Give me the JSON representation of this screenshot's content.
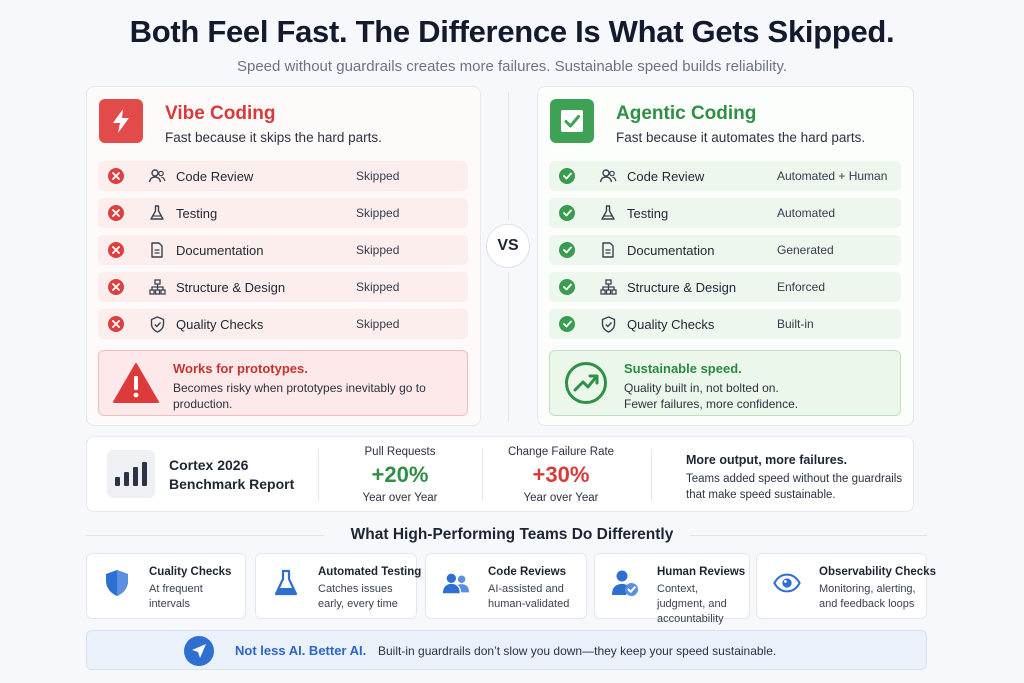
{
  "header": {
    "title": "Both Feel Fast. The Difference Is What Gets Skipped.",
    "subtitle": "Speed without guardrails creates more failures. Sustainable speed builds reliability."
  },
  "vibe": {
    "title": "Vibe Coding",
    "description": "Fast because it skips the hard parts.",
    "accent": "#d83a3a",
    "items": [
      {
        "label": "Code Review",
        "value": "Skipped",
        "icon": "users-icon"
      },
      {
        "label": "Testing",
        "value": "Skipped",
        "icon": "flask-icon"
      },
      {
        "label": "Documentation",
        "value": "Skipped",
        "icon": "document-icon"
      },
      {
        "label": "Structure & Design",
        "value": "Skipped",
        "icon": "hierarchy-icon"
      },
      {
        "label": "Quality Checks",
        "value": "Skipped",
        "icon": "shield-check-icon"
      }
    ],
    "note": {
      "title": "Works for prototypes.",
      "text": "Becomes risky when prototypes inevitably go to production."
    }
  },
  "vs_label": "VS",
  "agentic": {
    "title": "Agentic Coding",
    "description": "Fast because it automates the hard parts.",
    "accent": "#2e8f45",
    "items": [
      {
        "label": "Code Review",
        "value": "Automated + Human",
        "icon": "users-icon"
      },
      {
        "label": "Testing",
        "value": "Automated",
        "icon": "flask-icon"
      },
      {
        "label": "Documentation",
        "value": "Generated",
        "icon": "document-icon"
      },
      {
        "label": "Structure & Design",
        "value": "Enforced",
        "icon": "hierarchy-icon"
      },
      {
        "label": "Quality Checks",
        "value": "Built-in",
        "icon": "shield-check-icon"
      }
    ],
    "note": {
      "title": "Sustainable speed.",
      "line1": "Quality built in, not bolted on.",
      "line2": "Fewer failures, more confidence."
    }
  },
  "benchmark": {
    "title_line1": "Cortex 2026",
    "title_line2": "Benchmark Report",
    "metrics": [
      {
        "label": "Pull Requests",
        "value": "+20%",
        "sub": "Year over Year",
        "color": "#2e8f45"
      },
      {
        "label": "Change Failure Rate",
        "value": "+30%",
        "sub": "Year over Year",
        "color": "#d83a3a"
      }
    ],
    "outcome_title": "More output, more failures.",
    "outcome_text": "Teams added speed without the guardrails that make speed sustainable."
  },
  "practices": {
    "title": "What High-Performing Teams Do Differently",
    "accent": "#2f6fd1",
    "cards": [
      {
        "title": "Cuality Checks",
        "text": "At frequent intervals",
        "icon": "shield-icon"
      },
      {
        "title": "Automated Testing",
        "text": "Catches issues early, every time",
        "icon": "flask-icon"
      },
      {
        "title": "Code Reviews",
        "text": "AI-assisted and human-validated",
        "icon": "users-icon"
      },
      {
        "title": "Human Reviews",
        "text": "Context, judgment, and accountability",
        "icon": "user-check-icon"
      },
      {
        "title": "Observability Checks",
        "text": "Monitoring, alerting, and feedback loops",
        "icon": "eye-icon"
      }
    ]
  },
  "banner": {
    "bold": "Not less AI. Better AI.",
    "text": "Built-in guardrails don’t slow you down—they keep your speed sustainable."
  }
}
